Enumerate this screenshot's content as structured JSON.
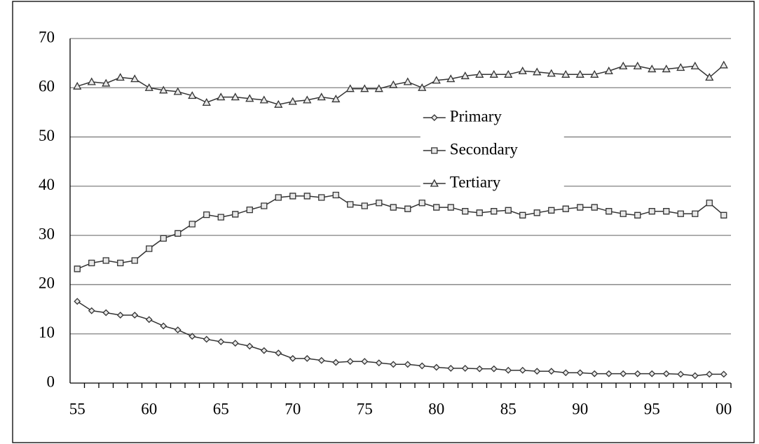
{
  "chart_data": {
    "type": "line",
    "categories": [
      "55",
      null,
      null,
      null,
      null,
      "60",
      null,
      null,
      null,
      null,
      "65",
      null,
      null,
      null,
      null,
      "70",
      null,
      null,
      null,
      null,
      "75",
      null,
      null,
      null,
      null,
      "80",
      null,
      null,
      null,
      null,
      "85",
      null,
      null,
      null,
      null,
      "90",
      null,
      null,
      null,
      null,
      "95",
      null,
      null,
      null,
      null,
      "00"
    ],
    "series": [
      {
        "name": "Primary",
        "color": "#333333",
        "marker": "diamond",
        "values": [
          16.6,
          14.7,
          14.3,
          13.8,
          13.8,
          12.9,
          11.6,
          10.8,
          9.5,
          8.9,
          8.4,
          8.1,
          7.5,
          6.6,
          6.1,
          5.0,
          5.0,
          4.6,
          4.2,
          4.4,
          4.4,
          4.1,
          3.8,
          3.8,
          3.5,
          3.2,
          3.0,
          3.0,
          2.9,
          2.9,
          2.6,
          2.6,
          2.4,
          2.4,
          2.1,
          2.1,
          1.9,
          1.9,
          1.9,
          1.9,
          1.9,
          1.9,
          1.8,
          1.5,
          1.8,
          1.8
        ]
      },
      {
        "name": "Secondary",
        "color": "#333333",
        "marker": "square",
        "values": [
          23.2,
          24.4,
          24.9,
          24.4,
          24.9,
          27.3,
          29.4,
          30.4,
          32.3,
          34.2,
          33.7,
          34.3,
          35.2,
          36.0,
          37.7,
          38.0,
          38.0,
          37.7,
          38.2,
          36.3,
          36.0,
          36.6,
          35.7,
          35.4,
          36.6,
          35.7,
          35.7,
          34.9,
          34.6,
          34.9,
          35.1,
          34.1,
          34.6,
          35.1,
          35.4,
          35.7,
          35.7,
          34.9,
          34.4,
          34.1,
          34.9,
          34.9,
          34.4,
          34.4,
          36.6,
          34.1
        ]
      },
      {
        "name": "Tertiary",
        "color": "#333333",
        "marker": "triangle",
        "values": [
          60.3,
          61.2,
          60.9,
          62.1,
          61.8,
          60.0,
          59.5,
          59.2,
          58.4,
          57.0,
          58.1,
          58.1,
          57.8,
          57.5,
          56.6,
          57.2,
          57.5,
          58.1,
          57.7,
          59.8,
          59.8,
          59.8,
          60.6,
          61.2,
          60.0,
          61.5,
          61.8,
          62.4,
          62.7,
          62.7,
          62.7,
          63.4,
          63.2,
          62.9,
          62.7,
          62.7,
          62.7,
          63.4,
          64.4,
          64.4,
          63.8,
          63.8,
          64.1,
          64.4,
          62.1,
          64.6
        ]
      }
    ],
    "ylim": [
      0,
      70
    ],
    "yticks": [
      0,
      10,
      20,
      30,
      40,
      50,
      60,
      70
    ],
    "grid": true,
    "legend": "upper center"
  }
}
